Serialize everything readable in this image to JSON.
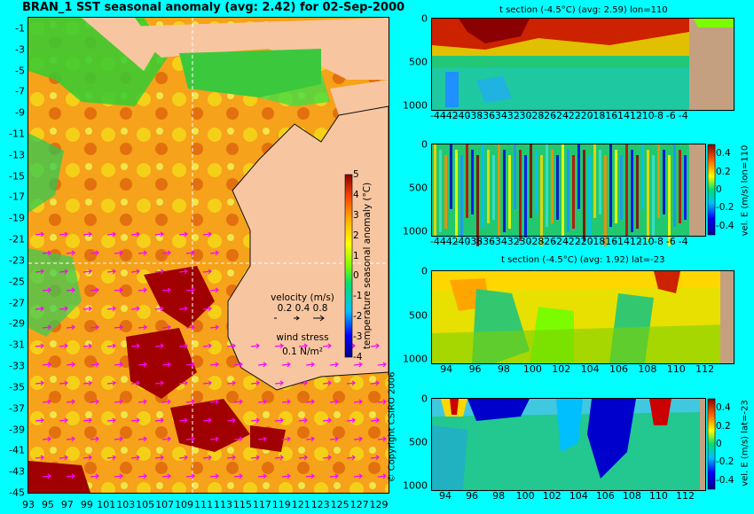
{
  "main_map": {
    "title": "BRAN_1  SST seasonal anomaly  (avg: 2.42) for 02-Sep-2000",
    "lat_ticks": [
      "-1",
      "-3",
      "-5",
      "-7",
      "-9",
      "-11",
      "-13",
      "-15",
      "-17",
      "-19",
      "-21",
      "-23",
      "-25",
      "-27",
      "-29",
      "-31",
      "-33",
      "-35",
      "-37",
      "-39",
      "-41",
      "-43",
      "-45"
    ],
    "lon_ticks": [
      "93",
      "95",
      "97",
      "99",
      "101",
      "103",
      "105",
      "107",
      "109",
      "111",
      "113",
      "115",
      "117",
      "119",
      "121",
      "123",
      "125",
      "127",
      "129"
    ],
    "colorbar": {
      "label": "temperature seasonal anomaly (°C)",
      "ticks": [
        "5",
        "4",
        "3",
        "2",
        "1",
        "0",
        "-1",
        "-2",
        "-3",
        "-4"
      ]
    },
    "legend": {
      "velocity_label": "velocity (m/s)",
      "velocity_values": "0.2 0.4 0.8",
      "wind_label": "wind stress",
      "wind_value": "0.1 N/m²"
    },
    "copyright": "© Copyright CSIRO 2006",
    "colors": {
      "land": "#f7c6a0",
      "background": "#00ffff",
      "arrows": "#ff00ff"
    }
  },
  "panels": [
    {
      "title": "t section (-4.5°C) (avg: 2.59) lon=110",
      "y_ticks": [
        "0",
        "500",
        "1000"
      ],
      "x_ticks": [
        "-44",
        "-42",
        "-40",
        "-38",
        "-36",
        "-34",
        "-32",
        "-30",
        "-28",
        "-26",
        "-24",
        "-22",
        "-20",
        "-18",
        "-16",
        "-14",
        "-12",
        "-10",
        "-8",
        "-6",
        "-4"
      ]
    },
    {
      "title": "",
      "y_ticks": [
        "0",
        "500",
        "1000"
      ],
      "x_ticks": [
        "-44",
        "-42",
        "-40",
        "-38",
        "-36",
        "-34",
        "-32",
        "-30",
        "-28",
        "-26",
        "-24",
        "-22",
        "-20",
        "-18",
        "-16",
        "-14",
        "-12",
        "-10",
        "-8",
        "-6",
        "-4"
      ],
      "colorbar": {
        "label": "vel. E (m/s) lon=110",
        "ticks": [
          "0.4",
          "0.2",
          "0",
          "-0.2",
          "-0.4"
        ]
      }
    },
    {
      "title": "t section (-4.5°C) (avg: 1.92) lat=-23",
      "y_ticks": [
        "0",
        "500",
        "1000"
      ],
      "x_ticks": [
        "94",
        "96",
        "98",
        "100",
        "102",
        "104",
        "106",
        "108",
        "110",
        "112"
      ]
    },
    {
      "title": "",
      "y_ticks": [
        "0",
        "500",
        "1000"
      ],
      "x_ticks": [
        "94",
        "96",
        "98",
        "100",
        "102",
        "104",
        "106",
        "108",
        "110",
        "112"
      ],
      "colorbar": {
        "label": "vel. E (m/s) lat=-23",
        "ticks": [
          "0.4",
          "0.2",
          "0",
          "-0.2",
          "-0.4"
        ]
      }
    }
  ],
  "chart_data": [
    {
      "type": "heatmap",
      "title": "BRAN_1  SST seasonal anomaly  (avg: 2.42) for 02-Sep-2000",
      "xlim": [
        93,
        130
      ],
      "ylim": [
        -45,
        0
      ],
      "color_range": [
        -4,
        5
      ],
      "variable": "SST seasonal anomaly (°C)",
      "average": 2.42,
      "date": "02-Sep-2000"
    },
    {
      "type": "heatmap",
      "title": "t section (-4.5°C) (avg: 2.59) lon=110",
      "x": "latitude",
      "xlim": [
        -45,
        -3
      ],
      "ylim": [
        1050,
        0
      ],
      "average": 2.59
    },
    {
      "type": "heatmap",
      "title": "",
      "variable": "vel. E (m/s) lon=110",
      "xlim": [
        -45,
        -3
      ],
      "ylim": [
        1050,
        0
      ],
      "color_range": [
        -0.4,
        0.4
      ]
    },
    {
      "type": "heatmap",
      "title": "t section (-4.5°C) (avg: 1.92) lat=-23",
      "x": "longitude",
      "xlim": [
        93,
        114
      ],
      "ylim": [
        1050,
        0
      ],
      "average": 1.92
    },
    {
      "type": "heatmap",
      "title": "",
      "variable": "vel. E (m/s) lat=-23",
      "xlim": [
        93,
        114
      ],
      "ylim": [
        1050,
        0
      ],
      "color_range": [
        -0.4,
        0.4
      ]
    }
  ]
}
